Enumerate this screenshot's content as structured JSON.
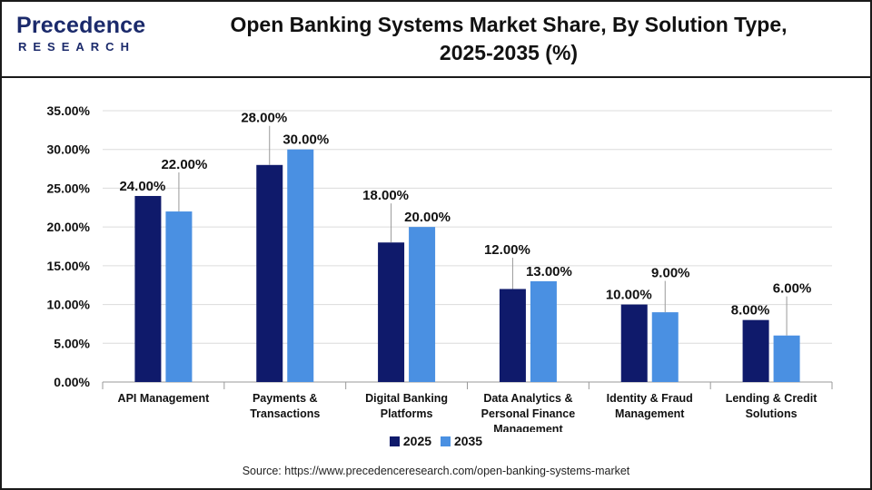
{
  "header": {
    "logo_main": "Precedence",
    "logo_sub": "RESEARCH",
    "title_line1": "Open Banking Systems Market Share, By Solution Type,",
    "title_line2": "2025-2035 (%)"
  },
  "colors": {
    "series_2025": "#0f1a6b",
    "series_2035": "#4a90e2",
    "grid": "#dcdcdc",
    "axis": "#999999"
  },
  "chart_data": {
    "type": "bar",
    "title": "Open Banking Systems Market Share, By Solution Type, 2025-2035 (%)",
    "categories": [
      [
        "API Management"
      ],
      [
        "Payments &",
        "Transactions"
      ],
      [
        "Digital Banking",
        "Platforms"
      ],
      [
        "Data Analytics &",
        "Personal Finance",
        "Management"
      ],
      [
        "Identity & Fraud",
        "Management"
      ],
      [
        "Lending & Credit",
        "Solutions"
      ]
    ],
    "series": [
      {
        "name": "2025",
        "values": [
          24,
          28,
          18,
          12,
          10,
          8
        ],
        "labels": [
          "24.00%",
          "28.00%",
          "18.00%",
          "12.00%",
          "10.00%",
          "8.00%"
        ]
      },
      {
        "name": "2035",
        "values": [
          22,
          30,
          20,
          13,
          9,
          6
        ],
        "labels": [
          "22.00%",
          "30.00%",
          "20.00%",
          "13.00%",
          "9.00%",
          "6.00%"
        ]
      }
    ],
    "ylim": [
      0,
      35
    ],
    "yticks": [
      "0.00%",
      "5.00%",
      "10.00%",
      "15.00%",
      "20.00%",
      "25.00%",
      "30.00%",
      "35.00%"
    ],
    "grid": true,
    "legend_position": "bottom-center"
  },
  "footer": {
    "source": "Source: https://www.precedenceresearch.com/open-banking-systems-market"
  }
}
